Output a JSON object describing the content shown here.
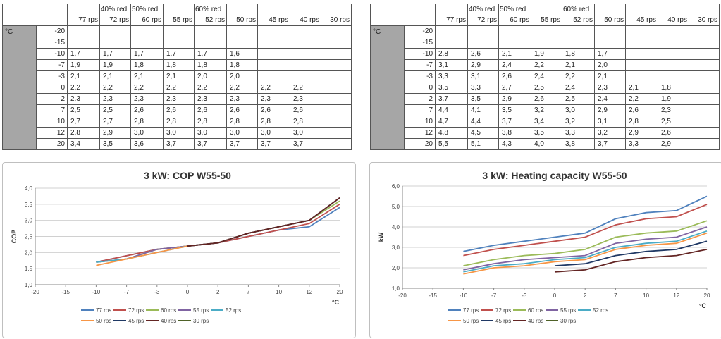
{
  "headers_top": [
    "",
    "40% red",
    "50% red",
    "",
    "60% red",
    "",
    "",
    "",
    ""
  ],
  "headers_sub": [
    "77 rps",
    "72 rps",
    "60 rps",
    "55 rps",
    "52 rps",
    "50 rps",
    "45 rps",
    "40 rps",
    "30 rps"
  ],
  "unit_label": "°C",
  "temps": [
    "-20",
    "-15",
    "-10",
    "-7",
    "-3",
    "0",
    "2",
    "7",
    "10",
    "12",
    "20"
  ],
  "cop_table": [
    [
      "",
      "",
      "",
      "",
      "",
      "",
      "",
      "",
      ""
    ],
    [
      "",
      "",
      "",
      "",
      "",
      "",
      "",
      "",
      ""
    ],
    [
      "1,7",
      "1,7",
      "1,7",
      "1,7",
      "1,7",
      "1,6",
      "",
      "",
      ""
    ],
    [
      "1,9",
      "1,9",
      "1,8",
      "1,8",
      "1,8",
      "1,8",
      "",
      "",
      ""
    ],
    [
      "2,1",
      "2,1",
      "2,1",
      "2,1",
      "2,0",
      "2,0",
      "",
      "",
      ""
    ],
    [
      "2,2",
      "2,2",
      "2,2",
      "2,2",
      "2,2",
      "2,2",
      "2,2",
      "2,2",
      ""
    ],
    [
      "2,3",
      "2,3",
      "2,3",
      "2,3",
      "2,3",
      "2,3",
      "2,3",
      "2,3",
      ""
    ],
    [
      "2,5",
      "2,5",
      "2,6",
      "2,6",
      "2,6",
      "2,6",
      "2,6",
      "2,6",
      ""
    ],
    [
      "2,7",
      "2,7",
      "2,8",
      "2,8",
      "2,8",
      "2,8",
      "2,8",
      "2,8",
      ""
    ],
    [
      "2,8",
      "2,9",
      "3,0",
      "3,0",
      "3,0",
      "3,0",
      "3,0",
      "3,0",
      ""
    ],
    [
      "3,4",
      "3,5",
      "3,6",
      "3,7",
      "3,7",
      "3,7",
      "3,7",
      "3,7",
      ""
    ]
  ],
  "cap_table": [
    [
      "",
      "",
      "",
      "",
      "",
      "",
      "",
      "",
      ""
    ],
    [
      "",
      "",
      "",
      "",
      "",
      "",
      "",
      "",
      ""
    ],
    [
      "2,8",
      "2,6",
      "2,1",
      "1,9",
      "1,8",
      "1,7",
      "",
      "",
      ""
    ],
    [
      "3,1",
      "2,9",
      "2,4",
      "2,2",
      "2,1",
      "2,0",
      "",
      "",
      ""
    ],
    [
      "3,3",
      "3,1",
      "2,6",
      "2,4",
      "2,2",
      "2,1",
      "",
      "",
      ""
    ],
    [
      "3,5",
      "3,3",
      "2,7",
      "2,5",
      "2,4",
      "2,3",
      "2,1",
      "1,8",
      ""
    ],
    [
      "3,7",
      "3,5",
      "2,9",
      "2,6",
      "2,5",
      "2,4",
      "2,2",
      "1,9",
      ""
    ],
    [
      "4,4",
      "4,1",
      "3,5",
      "3,2",
      "3,0",
      "2,9",
      "2,6",
      "2,3",
      ""
    ],
    [
      "4,7",
      "4,4",
      "3,7",
      "3,4",
      "3,2",
      "3,1",
      "2,8",
      "2,5",
      ""
    ],
    [
      "4,8",
      "4,5",
      "3,8",
      "3,5",
      "3,3",
      "3,2",
      "2,9",
      "2,6",
      ""
    ],
    [
      "5,5",
      "5,1",
      "4,3",
      "4,0",
      "3,8",
      "3,7",
      "3,3",
      "2,9",
      ""
    ]
  ],
  "chart_data": [
    {
      "type": "line",
      "title": "3 kW: COP W55-50",
      "ylabel": "COP",
      "xlabel": "°C",
      "x": [
        "-20",
        "-15",
        "-10",
        "-7",
        "-3",
        "0",
        "2",
        "7",
        "10",
        "12",
        "20"
      ],
      "x_ticks": [
        "-20",
        "-15",
        "-10",
        "-7",
        "-3",
        "0",
        "2",
        "7",
        "10",
        "12",
        "20"
      ],
      "ylim": [
        1.0,
        4.0
      ],
      "y_ticks": [
        "1,0",
        "1,5",
        "2,0",
        "2,5",
        "3,0",
        "3,5",
        "4,0"
      ],
      "grid": true,
      "legend_position": "bottom",
      "series": [
        {
          "name": "77 rps",
          "color": "#4f81bd",
          "values": [
            null,
            null,
            1.7,
            1.9,
            2.1,
            2.2,
            2.3,
            2.5,
            2.7,
            2.8,
            3.4
          ]
        },
        {
          "name": "72 rps",
          "color": "#c0504d",
          "values": [
            null,
            null,
            1.7,
            1.9,
            2.1,
            2.2,
            2.3,
            2.5,
            2.7,
            2.9,
            3.5
          ]
        },
        {
          "name": "60 rps",
          "color": "#9bbb59",
          "values": [
            null,
            null,
            1.7,
            1.8,
            2.1,
            2.2,
            2.3,
            2.6,
            2.8,
            3.0,
            3.6
          ]
        },
        {
          "name": "55 rps",
          "color": "#8064a2",
          "values": [
            null,
            null,
            1.7,
            1.8,
            2.1,
            2.2,
            2.3,
            2.6,
            2.8,
            3.0,
            3.7
          ]
        },
        {
          "name": "52 rps",
          "color": "#4bacc6",
          "values": [
            null,
            null,
            1.7,
            1.8,
            2.0,
            2.2,
            2.3,
            2.6,
            2.8,
            3.0,
            3.7
          ]
        },
        {
          "name": "50 rps",
          "color": "#f79646",
          "values": [
            null,
            null,
            1.6,
            1.8,
            2.0,
            2.2,
            2.3,
            2.6,
            2.8,
            3.0,
            3.7
          ]
        },
        {
          "name": "45 rps",
          "color": "#1f3864",
          "values": [
            null,
            null,
            null,
            null,
            null,
            2.2,
            2.3,
            2.6,
            2.8,
            3.0,
            3.7
          ]
        },
        {
          "name": "40 rps",
          "color": "#632523",
          "values": [
            null,
            null,
            null,
            null,
            null,
            2.2,
            2.3,
            2.6,
            2.8,
            3.0,
            3.7
          ]
        },
        {
          "name": "30 rps",
          "color": "#4f6228",
          "values": [
            null,
            null,
            null,
            null,
            null,
            null,
            null,
            null,
            null,
            null,
            null
          ]
        }
      ]
    },
    {
      "type": "line",
      "title": "3 kW: Heating capacity W55-50",
      "ylabel": "kW",
      "xlabel": "°C",
      "x": [
        "-20",
        "-15",
        "-10",
        "-7",
        "-3",
        "0",
        "2",
        "7",
        "10",
        "12",
        "20"
      ],
      "x_ticks": [
        "-20",
        "-15",
        "-10",
        "-7",
        "-3",
        "0",
        "2",
        "7",
        "10",
        "12",
        "20"
      ],
      "ylim": [
        1.0,
        6.0
      ],
      "y_ticks": [
        "1,0",
        "2,0",
        "3,0",
        "4,0",
        "5,0",
        "6,0"
      ],
      "grid": true,
      "legend_position": "bottom",
      "series": [
        {
          "name": "77 rps",
          "color": "#4f81bd",
          "values": [
            null,
            null,
            2.8,
            3.1,
            3.3,
            3.5,
            3.7,
            4.4,
            4.7,
            4.8,
            5.5
          ]
        },
        {
          "name": "72 rps",
          "color": "#c0504d",
          "values": [
            null,
            null,
            2.6,
            2.9,
            3.1,
            3.3,
            3.5,
            4.1,
            4.4,
            4.5,
            5.1
          ]
        },
        {
          "name": "60 rps",
          "color": "#9bbb59",
          "values": [
            null,
            null,
            2.1,
            2.4,
            2.6,
            2.7,
            2.9,
            3.5,
            3.7,
            3.8,
            4.3
          ]
        },
        {
          "name": "55 rps",
          "color": "#8064a2",
          "values": [
            null,
            null,
            1.9,
            2.2,
            2.4,
            2.5,
            2.6,
            3.2,
            3.4,
            3.5,
            4.0
          ]
        },
        {
          "name": "52 rps",
          "color": "#4bacc6",
          "values": [
            null,
            null,
            1.8,
            2.1,
            2.2,
            2.4,
            2.5,
            3.0,
            3.2,
            3.3,
            3.8
          ]
        },
        {
          "name": "50 rps",
          "color": "#f79646",
          "values": [
            null,
            null,
            1.7,
            2.0,
            2.1,
            2.3,
            2.4,
            2.9,
            3.1,
            3.2,
            3.7
          ]
        },
        {
          "name": "45 rps",
          "color": "#1f3864",
          "values": [
            null,
            null,
            null,
            null,
            null,
            2.1,
            2.2,
            2.6,
            2.8,
            2.9,
            3.3
          ]
        },
        {
          "name": "40 rps",
          "color": "#632523",
          "values": [
            null,
            null,
            null,
            null,
            null,
            1.8,
            1.9,
            2.3,
            2.5,
            2.6,
            2.9
          ]
        },
        {
          "name": "30 rps",
          "color": "#4f6228",
          "values": [
            null,
            null,
            null,
            null,
            null,
            null,
            null,
            null,
            null,
            null,
            null
          ]
        }
      ]
    }
  ]
}
